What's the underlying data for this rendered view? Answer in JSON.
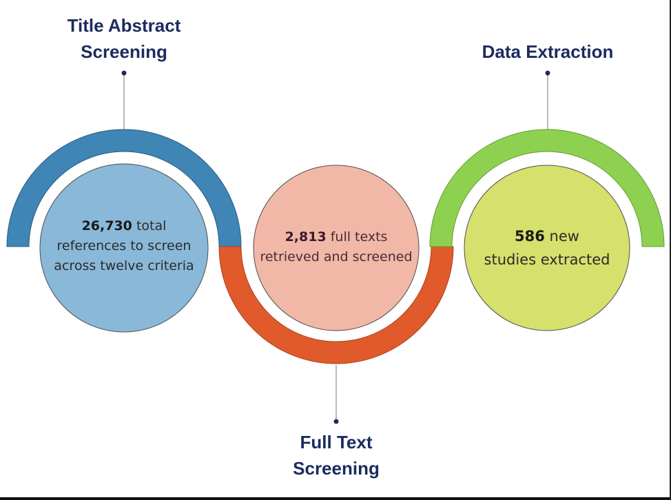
{
  "stages": [
    {
      "id": "title-abstract",
      "heading_lines": [
        "Title Abstract",
        "Screening"
      ],
      "value": "26,730",
      "description_line1": " total",
      "description_line2": "references to screen",
      "description_line3": "across twelve criteria",
      "arc_color": "#3f85b5",
      "circle_color": "#8ab8d8"
    },
    {
      "id": "full-text",
      "heading_lines": [
        "Full Text",
        "Screening"
      ],
      "value": "2,813",
      "description_line1": " full texts",
      "description_line2": "retrieved and screened",
      "arc_color": "#e05a2b",
      "circle_color": "#f1b8a7"
    },
    {
      "id": "data-extraction",
      "heading_lines": [
        "Data Extraction"
      ],
      "value": "586",
      "description_line1": " new",
      "description_line2": "studies extracted",
      "arc_color": "#8ed150",
      "circle_color": "#d6e06c"
    }
  ],
  "colors": {
    "heading_text": "#1c2b5e",
    "connector": "#9aa3ad"
  }
}
